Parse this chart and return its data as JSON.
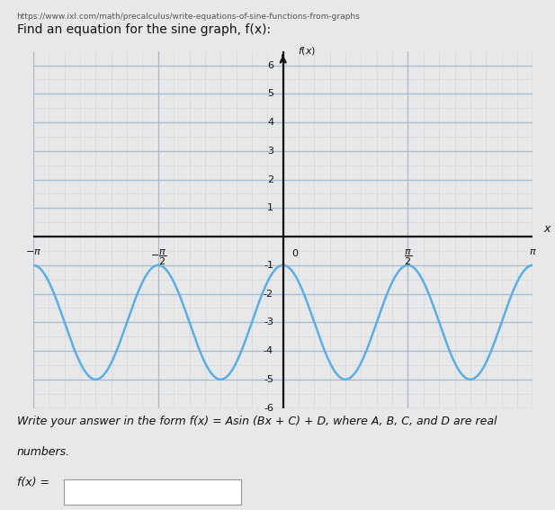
{
  "title": "Find an equation for the sine graph, f(x):",
  "url_text": "https://www.ixl.com/math/precalculus/write-equations-of-sine-functions-from-graphs",
  "xlim": [
    -3.14159265358979,
    3.14159265358979
  ],
  "ylim": [
    -6.0,
    6.5
  ],
  "A": 2,
  "B": 4,
  "C": 1.5707963267948966,
  "D": -3,
  "line_color": "#5aaee8",
  "line_width": 1.8,
  "grid_major_color": "#aab8cc",
  "grid_minor_color": "#ccd4e0",
  "bg_color": "#e8e8e8",
  "plot_bg_color": "#e8e8e8",
  "axis_color": "#111111",
  "tick_label_color": "#111111",
  "bottom_text1": "Write your answer in the form f(x) = Asin (Bx + C) + D, where A, B, C, and D are real",
  "bottom_text2": "numbers.",
  "bottom_text3": "f(x) ="
}
